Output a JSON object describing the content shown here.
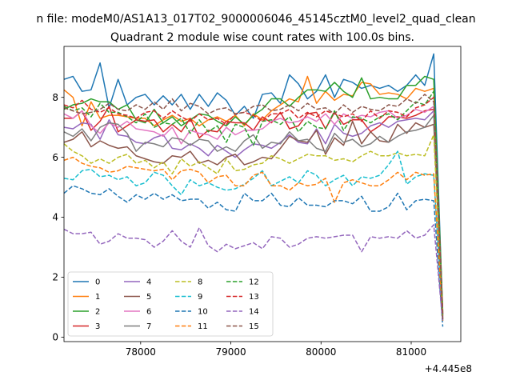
{
  "figure": {
    "suptitle": "n file: modeM0/AS1A13_017T02_9000006046_45145cztM0_level2_quad_clean",
    "title": "Quadrant 2 module wise count rates with 100.0s bins.",
    "x_offset_label": "+4.445e8"
  },
  "chart_data": {
    "type": "line",
    "title": "Quadrant 2 module wise count rates with 100.0s bins.",
    "xlabel": "",
    "ylabel": "",
    "x_offset": 444500000,
    "xlim": [
      77150,
      81550
    ],
    "ylim": [
      -0.15,
      9.7
    ],
    "x_ticks": [
      78000,
      79000,
      80000,
      81000
    ],
    "x_tick_labels": [
      "78000",
      "79000",
      "80000",
      "81000"
    ],
    "y_ticks": [
      0,
      2,
      4,
      6,
      8
    ],
    "y_tick_labels": [
      "0",
      "2",
      "4",
      "6",
      "8"
    ],
    "grid": false,
    "legend": {
      "placement": "lower-left",
      "columns": 4
    },
    "x": [
      77150,
      77250,
      77350,
      77450,
      77550,
      77650,
      77750,
      77850,
      77950,
      78050,
      78150,
      78250,
      78350,
      78450,
      78550,
      78650,
      78750,
      78850,
      78950,
      79050,
      79150,
      79250,
      79350,
      79450,
      79550,
      79650,
      79750,
      79850,
      79950,
      80050,
      80150,
      80250,
      80350,
      80450,
      80550,
      80650,
      80750,
      80850,
      80950,
      81050,
      81150,
      81250,
      81350
    ],
    "series": [
      {
        "name": "0",
        "color": "#1f77b4",
        "dash": "solid",
        "values": [
          8.6,
          8.7,
          8.2,
          8.25,
          9.15,
          7.65,
          8.6,
          7.75,
          8.0,
          8.1,
          7.75,
          8.05,
          7.75,
          8.1,
          7.6,
          8.1,
          7.7,
          8.15,
          7.9,
          7.4,
          7.7,
          7.3,
          8.1,
          8.15,
          7.8,
          8.75,
          8.45,
          7.95,
          8.2,
          8.75,
          8.0,
          8.6,
          8.5,
          8.3,
          8.4,
          8.3,
          8.4,
          8.2,
          8.4,
          8.75,
          8.4,
          9.45,
          0.75
        ]
      },
      {
        "name": "1",
        "color": "#ff7f0e",
        "dash": "solid",
        "values": [
          8.25,
          8.0,
          7.05,
          7.85,
          7.3,
          7.4,
          7.4,
          7.35,
          7.3,
          7.3,
          7.05,
          7.25,
          7.4,
          7.2,
          7.3,
          7.05,
          7.25,
          7.35,
          7.2,
          7.4,
          7.05,
          7.45,
          7.25,
          7.55,
          7.75,
          7.95,
          7.85,
          8.7,
          7.8,
          8.2,
          7.9,
          8.1,
          8.05,
          8.5,
          8.45,
          8.1,
          8.15,
          8.1,
          7.95,
          8.3,
          8.2,
          8.3,
          0.8
        ]
      },
      {
        "name": "2",
        "color": "#2ca02c",
        "dash": "solid",
        "values": [
          7.6,
          7.75,
          7.8,
          7.95,
          7.85,
          7.85,
          7.6,
          7.75,
          7.25,
          7.15,
          7.6,
          7.15,
          7.35,
          7.05,
          7.25,
          7.45,
          7.4,
          7.2,
          7.05,
          7.35,
          7.1,
          7.4,
          7.6,
          7.95,
          7.95,
          7.7,
          8.0,
          8.25,
          8.25,
          8.2,
          8.5,
          8.2,
          8.0,
          8.65,
          7.95,
          8.0,
          7.95,
          7.95,
          8.4,
          8.4,
          8.7,
          8.6,
          0.85
        ]
      },
      {
        "name": "3",
        "color": "#d62728",
        "dash": "solid",
        "values": [
          7.3,
          7.3,
          7.55,
          6.9,
          7.2,
          7.7,
          6.85,
          7.05,
          7.25,
          7.2,
          7.25,
          6.85,
          7.1,
          6.85,
          7.3,
          6.65,
          6.9,
          6.85,
          7.2,
          7.15,
          7.15,
          6.9,
          7.35,
          7.15,
          7.5,
          6.95,
          7.05,
          7.45,
          7.5,
          6.95,
          7.5,
          7.1,
          7.25,
          7.25,
          6.85,
          7.05,
          7.35,
          7.35,
          7.3,
          7.4,
          7.55,
          7.6,
          0.7
        ]
      },
      {
        "name": "4",
        "color": "#9467bd",
        "dash": "solid",
        "values": [
          7.0,
          6.95,
          7.15,
          7.1,
          6.6,
          7.25,
          6.75,
          6.7,
          6.5,
          6.45,
          6.65,
          6.75,
          6.3,
          6.25,
          6.45,
          6.3,
          6.05,
          6.4,
          6.2,
          6.0,
          6.25,
          6.45,
          6.4,
          6.3,
          6.5,
          6.75,
          6.5,
          6.45,
          6.95,
          6.45,
          7.1,
          6.8,
          6.7,
          6.8,
          7.05,
          7.15,
          7.0,
          7.2,
          7.25,
          7.3,
          7.25,
          7.55,
          0.6
        ]
      },
      {
        "name": "5",
        "color": "#8c564b",
        "dash": "solid",
        "values": [
          6.5,
          6.6,
          6.85,
          6.35,
          6.55,
          6.4,
          6.3,
          6.35,
          6.05,
          5.95,
          5.85,
          5.8,
          6.05,
          6.0,
          6.2,
          5.8,
          5.9,
          5.75,
          6.0,
          6.1,
          5.75,
          5.85,
          6.0,
          5.95,
          6.3,
          6.7,
          6.55,
          6.5,
          6.9,
          6.1,
          6.65,
          6.4,
          7.2,
          6.45,
          6.85,
          6.55,
          6.5,
          7.1,
          6.8,
          7.15,
          7.0,
          7.1,
          0.55
        ]
      },
      {
        "name": "6",
        "color": "#e377c2",
        "dash": "solid",
        "values": [
          7.45,
          7.3,
          7.55,
          7.05,
          6.8,
          7.15,
          7.0,
          7.2,
          6.95,
          6.9,
          6.85,
          6.7,
          7.0,
          6.45,
          6.9,
          6.8,
          6.75,
          6.6,
          7.0,
          6.75,
          6.9,
          6.9,
          6.95,
          7.2,
          7.3,
          7.15,
          7.2,
          7.35,
          7.2,
          7.45,
          7.1,
          7.45,
          7.3,
          7.4,
          7.35,
          7.5,
          7.55,
          7.3,
          7.4,
          7.6,
          7.5,
          7.7,
          0.75
        ]
      },
      {
        "name": "7",
        "color": "#7f7f7f",
        "dash": "solid",
        "values": [
          6.85,
          6.7,
          6.95,
          6.55,
          7.0,
          7.15,
          7.1,
          6.8,
          6.2,
          6.5,
          6.45,
          6.35,
          6.65,
          6.6,
          6.4,
          6.6,
          6.55,
          6.2,
          6.35,
          6.2,
          6.55,
          6.75,
          6.3,
          6.5,
          6.45,
          6.85,
          6.55,
          6.6,
          6.3,
          6.2,
          6.8,
          6.5,
          6.6,
          6.35,
          6.45,
          6.7,
          6.5,
          6.7,
          6.85,
          6.9,
          7.0,
          7.4,
          0.65
        ]
      },
      {
        "name": "8",
        "color": "#bcbd22",
        "dash": "dashed",
        "values": [
          6.45,
          6.2,
          6.05,
          5.8,
          5.95,
          5.8,
          6.0,
          6.1,
          5.8,
          5.9,
          5.65,
          5.85,
          5.45,
          5.95,
          5.7,
          5.85,
          5.65,
          5.45,
          5.95,
          5.55,
          5.6,
          5.75,
          5.8,
          6.05,
          5.95,
          5.8,
          5.95,
          6.1,
          6.05,
          6.05,
          5.9,
          5.95,
          5.85,
          6.05,
          6.2,
          6.05,
          6.05,
          6.15,
          6.05,
          6.1,
          6.05,
          6.75,
          0.6
        ]
      },
      {
        "name": "9",
        "color": "#17becf",
        "dash": "dashed",
        "values": [
          5.3,
          5.25,
          5.55,
          5.6,
          5.35,
          5.4,
          5.25,
          5.35,
          5.05,
          5.15,
          5.5,
          5.4,
          5.05,
          4.75,
          5.25,
          5.05,
          5.15,
          5.0,
          4.9,
          4.95,
          5.1,
          5.3,
          5.55,
          5.05,
          5.2,
          5.35,
          5.15,
          5.55,
          5.4,
          5.05,
          5.25,
          5.4,
          5.05,
          5.35,
          5.3,
          5.4,
          5.75,
          6.2,
          5.1,
          5.35,
          5.45,
          5.4,
          0.5
        ]
      },
      {
        "name": "10",
        "color": "#1f77b4",
        "dash": "dashed",
        "values": [
          4.8,
          5.05,
          4.95,
          4.8,
          4.75,
          4.95,
          4.7,
          4.5,
          4.75,
          4.6,
          4.8,
          4.6,
          4.75,
          4.55,
          4.6,
          4.6,
          4.3,
          4.5,
          4.25,
          4.2,
          4.8,
          4.55,
          4.55,
          4.8,
          4.4,
          4.35,
          4.65,
          4.4,
          4.4,
          4.35,
          4.55,
          4.55,
          4.45,
          4.7,
          4.2,
          4.2,
          4.35,
          4.8,
          4.25,
          4.55,
          4.6,
          4.55,
          0.35
        ]
      },
      {
        "name": "11",
        "color": "#ff7f0e",
        "dash": "dashed",
        "values": [
          5.9,
          6.0,
          5.8,
          5.7,
          5.65,
          5.5,
          5.55,
          5.7,
          5.65,
          5.6,
          5.55,
          5.6,
          5.25,
          5.55,
          5.6,
          5.5,
          5.15,
          5.35,
          5.4,
          5.05,
          5.05,
          5.4,
          5.5,
          5.05,
          5.05,
          4.9,
          5.15,
          5.05,
          5.1,
          5.3,
          4.5,
          5.15,
          5.25,
          5.15,
          5.05,
          5.05,
          5.25,
          5.5,
          5.25,
          5.5,
          5.4,
          5.45,
          0.55
        ]
      },
      {
        "name": "12",
        "color": "#2ca02c",
        "dash": "dashed",
        "values": [
          7.7,
          7.55,
          7.65,
          7.35,
          7.8,
          7.5,
          7.5,
          7.35,
          7.15,
          7.45,
          7.0,
          7.15,
          7.1,
          7.3,
          6.8,
          7.25,
          6.85,
          7.05,
          6.5,
          7.1,
          7.0,
          6.4,
          7.2,
          7.25,
          7.1,
          7.35,
          6.85,
          7.2,
          7.0,
          6.95,
          7.55,
          6.9,
          7.35,
          7.3,
          7.15,
          7.35,
          7.45,
          7.25,
          7.55,
          7.85,
          7.75,
          8.2,
          0.7
        ]
      },
      {
        "name": "13",
        "color": "#d62728",
        "dash": "dashed",
        "values": [
          7.75,
          7.65,
          7.9,
          7.6,
          7.5,
          7.65,
          7.45,
          7.4,
          7.3,
          7.5,
          7.55,
          7.3,
          7.55,
          7.35,
          7.2,
          7.45,
          7.25,
          7.3,
          7.1,
          7.45,
          7.5,
          7.4,
          7.2,
          7.45,
          7.45,
          7.6,
          7.3,
          7.5,
          7.35,
          7.55,
          7.45,
          7.35,
          7.45,
          7.2,
          7.55,
          7.3,
          7.55,
          7.5,
          7.35,
          7.65,
          7.75,
          8.0,
          0.75
        ]
      },
      {
        "name": "14",
        "color": "#9467bd",
        "dash": "dashed",
        "values": [
          3.6,
          3.45,
          3.45,
          3.5,
          3.1,
          3.2,
          3.45,
          3.3,
          3.3,
          3.25,
          3.0,
          3.2,
          3.55,
          3.2,
          3.0,
          3.65,
          3.05,
          2.85,
          3.1,
          2.95,
          3.05,
          3.15,
          2.95,
          3.35,
          3.3,
          3.0,
          3.1,
          3.3,
          3.35,
          3.3,
          3.35,
          3.4,
          3.4,
          2.85,
          3.35,
          3.3,
          3.35,
          3.3,
          3.55,
          3.3,
          3.4,
          3.75,
          0.5
        ]
      },
      {
        "name": "15",
        "color": "#8c564b",
        "dash": "dashed",
        "values": [
          7.65,
          7.55,
          7.45,
          7.5,
          7.6,
          7.8,
          7.6,
          7.55,
          7.75,
          7.6,
          7.85,
          7.6,
          7.95,
          7.55,
          7.8,
          7.7,
          7.45,
          7.6,
          7.65,
          7.45,
          7.5,
          7.7,
          7.75,
          7.55,
          7.6,
          7.75,
          7.55,
          7.8,
          7.6,
          7.65,
          7.45,
          7.75,
          7.5,
          7.7,
          7.6,
          7.55,
          7.75,
          7.7,
          7.95,
          7.8,
          8.1,
          7.85,
          0.6
        ]
      }
    ]
  }
}
